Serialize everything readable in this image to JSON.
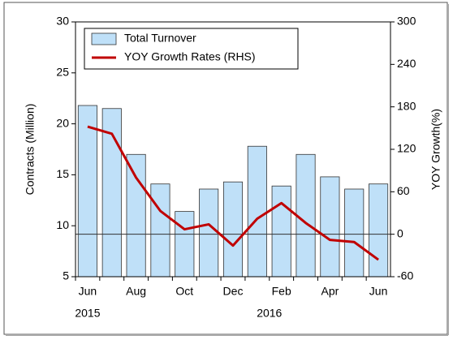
{
  "chart_data": {
    "type": "bar",
    "categories": [
      "Jun",
      null,
      "Aug",
      null,
      "Oct",
      null,
      "Dec",
      null,
      "Feb",
      null,
      "Apr",
      null,
      "Jun"
    ],
    "year_labels": [
      "2015",
      "2016"
    ],
    "y_label": "Contracts (Million)",
    "y2_label": "YOY Growth(%)",
    "series": [
      {
        "name": "Total Turnover",
        "type": "bar",
        "color": "#bfe0f8",
        "axis": "y",
        "values": [
          21.8,
          21.5,
          17.0,
          14.1,
          11.4,
          13.6,
          14.3,
          17.8,
          13.9,
          17.0,
          14.8,
          13.6,
          14.1
        ]
      },
      {
        "name": "YOY Growth Rates (RHS)",
        "type": "line",
        "color": "#c00000",
        "axis": "y2",
        "values": [
          152,
          142,
          80,
          33,
          7,
          14,
          -16,
          22,
          44,
          16,
          -8,
          -11,
          -36
        ]
      }
    ],
    "ylim": [
      5,
      30
    ],
    "yticks": [
      5,
      10,
      15,
      20,
      25,
      30
    ],
    "y2lim": [
      -60,
      300
    ],
    "y2ticks": [
      -60,
      0,
      60,
      120,
      180,
      240,
      300
    ],
    "legend": "upper left"
  }
}
